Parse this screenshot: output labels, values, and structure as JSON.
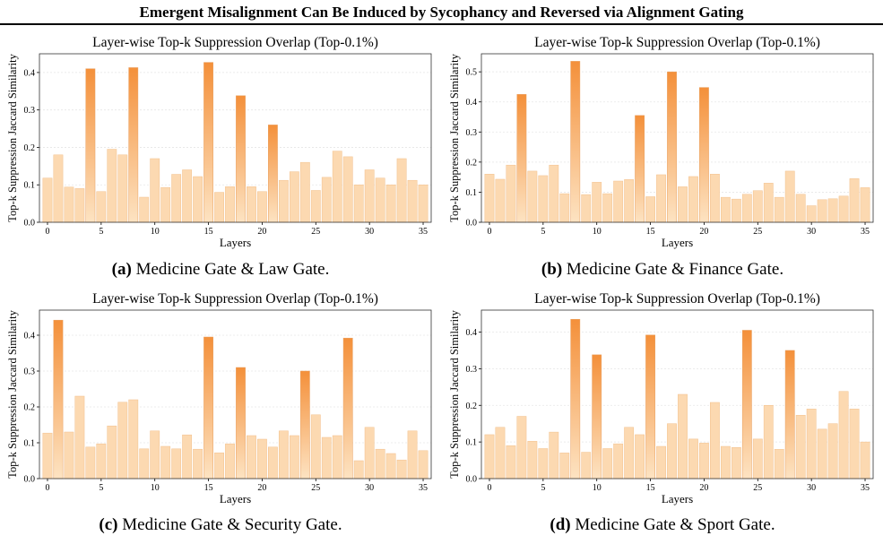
{
  "banner": {
    "title": "Emergent Misalignment Can Be Induced by Sycophancy and Reversed via Alignment Gating"
  },
  "colors": {
    "bar_top": "#f4903a",
    "bar_bottom": "#fde3c2",
    "bar_low": "#fbd3a5",
    "grid": "#e6e6e6"
  },
  "chart_data": [
    {
      "type": "bar",
      "title": "Layer-wise Top-k Suppression Overlap (Top-0.1%)",
      "xlabel": "Layers",
      "ylabel": "Top-k Suppression Jaccard Similarity",
      "caption_tag": "(a)",
      "caption_text": " Medicine Gate & Law Gate.",
      "x": [
        0,
        1,
        2,
        3,
        4,
        5,
        6,
        7,
        8,
        9,
        10,
        11,
        12,
        13,
        14,
        15,
        16,
        17,
        18,
        19,
        20,
        21,
        22,
        23,
        24,
        25,
        26,
        27,
        28,
        29,
        30,
        31,
        32,
        33,
        34,
        35
      ],
      "values": [
        0.118,
        0.18,
        0.094,
        0.09,
        0.41,
        0.082,
        0.195,
        0.18,
        0.413,
        0.067,
        0.17,
        0.093,
        0.128,
        0.14,
        0.122,
        0.427,
        0.08,
        0.095,
        0.338,
        0.095,
        0.082,
        0.26,
        0.112,
        0.135,
        0.16,
        0.085,
        0.12,
        0.19,
        0.175,
        0.1,
        0.14,
        0.118,
        0.1,
        0.17,
        0.112,
        0.1
      ],
      "xticks": [
        0,
        5,
        10,
        15,
        20,
        25,
        30,
        35
      ],
      "yticks": [
        0.0,
        0.1,
        0.2,
        0.3,
        0.4
      ],
      "ylim": [
        0,
        0.45
      ],
      "grid": true
    },
    {
      "type": "bar",
      "title": "Layer-wise Top-k Suppression Overlap (Top-0.1%)",
      "xlabel": "Layers",
      "ylabel": "Top-k Suppression Jaccard Similarity",
      "caption_tag": "(b)",
      "caption_text": " Medicine Gate & Finance Gate.",
      "x": [
        0,
        1,
        2,
        3,
        4,
        5,
        6,
        7,
        8,
        9,
        10,
        11,
        12,
        13,
        14,
        15,
        16,
        17,
        18,
        19,
        20,
        21,
        22,
        23,
        24,
        25,
        26,
        27,
        28,
        29,
        30,
        31,
        32,
        33,
        34,
        35
      ],
      "values": [
        0.16,
        0.143,
        0.19,
        0.425,
        0.17,
        0.155,
        0.19,
        0.095,
        0.535,
        0.092,
        0.133,
        0.095,
        0.137,
        0.142,
        0.355,
        0.085,
        0.158,
        0.5,
        0.118,
        0.152,
        0.448,
        0.16,
        0.083,
        0.077,
        0.093,
        0.105,
        0.13,
        0.083,
        0.17,
        0.093,
        0.055,
        0.075,
        0.078,
        0.087,
        0.145,
        0.115
      ],
      "xticks": [
        0,
        5,
        10,
        15,
        20,
        25,
        30,
        35
      ],
      "yticks": [
        0.0,
        0.1,
        0.2,
        0.3,
        0.4,
        0.5
      ],
      "ylim": [
        0,
        0.56
      ],
      "grid": true
    },
    {
      "type": "bar",
      "title": "Layer-wise Top-k Suppression Overlap (Top-0.1%)",
      "xlabel": "Layers",
      "ylabel": "Top-k Suppression Jaccard Similarity",
      "caption_tag": "(c)",
      "caption_text": " Medicine Gate & Security Gate.",
      "x": [
        0,
        1,
        2,
        3,
        4,
        5,
        6,
        7,
        8,
        9,
        10,
        11,
        12,
        13,
        14,
        15,
        16,
        17,
        18,
        19,
        20,
        21,
        22,
        23,
        24,
        25,
        26,
        27,
        28,
        29,
        30,
        31,
        32,
        33,
        34,
        35
      ],
      "values": [
        0.127,
        0.442,
        0.13,
        0.23,
        0.088,
        0.097,
        0.147,
        0.213,
        0.22,
        0.083,
        0.133,
        0.09,
        0.083,
        0.122,
        0.082,
        0.395,
        0.072,
        0.097,
        0.31,
        0.12,
        0.11,
        0.088,
        0.133,
        0.12,
        0.3,
        0.178,
        0.115,
        0.12,
        0.392,
        0.05,
        0.143,
        0.082,
        0.07,
        0.052,
        0.133,
        0.078
      ],
      "xticks": [
        0,
        5,
        10,
        15,
        20,
        25,
        30,
        35
      ],
      "yticks": [
        0.0,
        0.1,
        0.2,
        0.3,
        0.4
      ],
      "ylim": [
        0,
        0.47
      ],
      "grid": true
    },
    {
      "type": "bar",
      "title": "Layer-wise Top-k Suppression Overlap (Top-0.1%)",
      "xlabel": "Layers",
      "ylabel": "Top-k Suppression Jaccard Similarity",
      "caption_tag": "(d)",
      "caption_text": " Medicine Gate & Sport Gate.",
      "x": [
        0,
        1,
        2,
        3,
        4,
        5,
        6,
        7,
        8,
        9,
        10,
        11,
        12,
        13,
        14,
        15,
        16,
        17,
        18,
        19,
        20,
        21,
        22,
        23,
        24,
        25,
        26,
        27,
        28,
        29,
        30,
        31,
        32,
        33,
        34,
        35
      ],
      "values": [
        0.12,
        0.14,
        0.09,
        0.17,
        0.102,
        0.082,
        0.127,
        0.07,
        0.435,
        0.072,
        0.338,
        0.082,
        0.095,
        0.14,
        0.12,
        0.392,
        0.088,
        0.15,
        0.23,
        0.108,
        0.097,
        0.208,
        0.088,
        0.085,
        0.405,
        0.108,
        0.2,
        0.08,
        0.35,
        0.173,
        0.19,
        0.135,
        0.15,
        0.238,
        0.19,
        0.1
      ],
      "xticks": [
        0,
        5,
        10,
        15,
        20,
        25,
        30,
        35
      ],
      "yticks": [
        0.0,
        0.1,
        0.2,
        0.3,
        0.4
      ],
      "ylim": [
        0,
        0.46
      ],
      "grid": true
    }
  ]
}
